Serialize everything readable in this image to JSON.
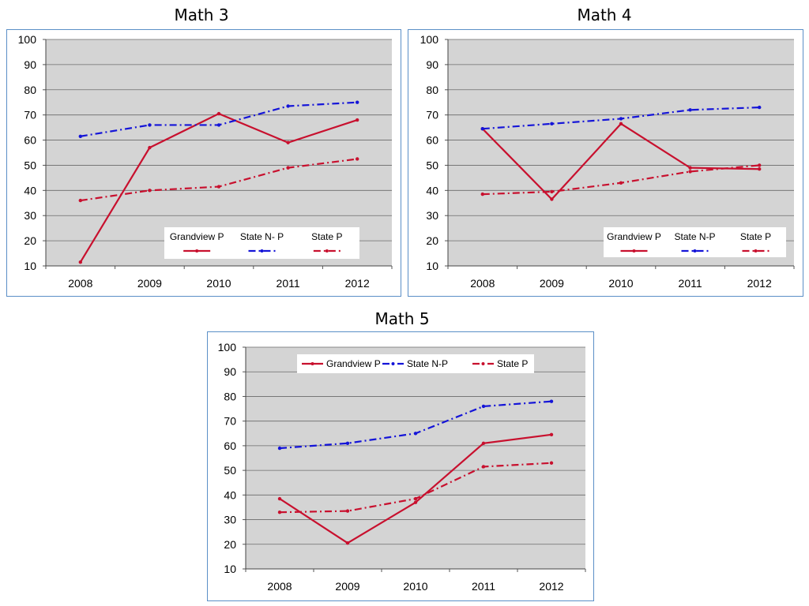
{
  "charts": [
    {
      "title": "Math 3"
    },
    {
      "title": "Math 4"
    },
    {
      "title": "Math 5"
    }
  ],
  "colors": {
    "grandview": "#c8102e",
    "state_np": "#1414d8",
    "state_p": "#c8102e",
    "plot_bg": "#d4d4d4",
    "frame": "#5b8fc7"
  },
  "chart_data": [
    {
      "type": "line",
      "title": "Math 3",
      "categories": [
        "2008",
        "2009",
        "2010",
        "2011",
        "2012"
      ],
      "ylim": [
        10,
        100
      ],
      "yticks": [
        10,
        20,
        30,
        40,
        50,
        60,
        70,
        80,
        90,
        100
      ],
      "grid": true,
      "legend": "bottom-right",
      "series": [
        {
          "name": "Grandview P",
          "style": "solid",
          "values": [
            11.5,
            57,
            70.5,
            59,
            68
          ]
        },
        {
          "name": "State N- P",
          "style": "dashdot-blue",
          "values": [
            61.5,
            66,
            66,
            73.5,
            75
          ]
        },
        {
          "name": "State P",
          "style": "dashdot-red",
          "values": [
            36,
            40,
            41.5,
            49,
            52.5
          ]
        }
      ]
    },
    {
      "type": "line",
      "title": "Math 4",
      "categories": [
        "2008",
        "2009",
        "2010",
        "2011",
        "2012"
      ],
      "ylim": [
        10,
        100
      ],
      "yticks": [
        10,
        20,
        30,
        40,
        50,
        60,
        70,
        80,
        90,
        100
      ],
      "grid": true,
      "legend": "bottom-right",
      "series": [
        {
          "name": "Grandview P",
          "style": "solid",
          "values": [
            64.5,
            36.5,
            66.5,
            49,
            48.5
          ]
        },
        {
          "name": "State N-P",
          "style": "dashdot-blue",
          "values": [
            64.5,
            66.5,
            68.5,
            72,
            73
          ]
        },
        {
          "name": "State P",
          "style": "dashdot-red",
          "values": [
            38.5,
            39.5,
            43,
            47.5,
            50
          ]
        }
      ]
    },
    {
      "type": "line",
      "title": "Math 5",
      "categories": [
        "2008",
        "2009",
        "2010",
        "2011",
        "2012"
      ],
      "ylim": [
        10,
        100
      ],
      "yticks": [
        10,
        20,
        30,
        40,
        50,
        60,
        70,
        80,
        90,
        100
      ],
      "grid": true,
      "legend": "top-left",
      "series": [
        {
          "name": "Grandview P",
          "style": "solid",
          "values": [
            38.5,
            20.5,
            37,
            61,
            64.5
          ]
        },
        {
          "name": "State N-P",
          "style": "dashdot-blue",
          "values": [
            59,
            61,
            65,
            76,
            78
          ]
        },
        {
          "name": "State P",
          "style": "dashdot-red",
          "values": [
            33,
            33.5,
            38.5,
            51.5,
            53
          ]
        }
      ]
    }
  ]
}
